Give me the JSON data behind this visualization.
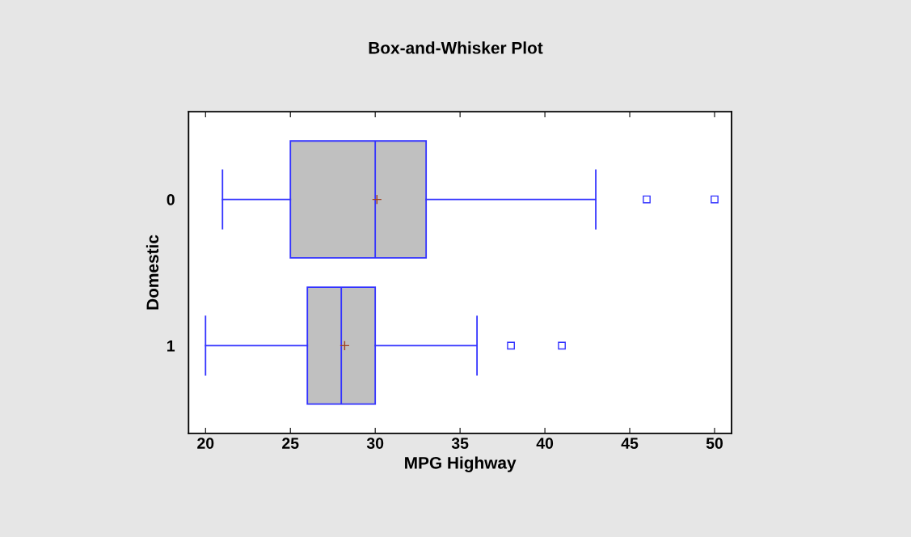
{
  "chart_data": {
    "type": "box",
    "title": "Box-and-Whisker Plot",
    "xlabel": "MPG Highway",
    "ylabel": "Domestic",
    "orientation": "horizontal",
    "categories": [
      "0",
      "1"
    ],
    "series": [
      {
        "color": "#3333ff",
        "boxes": [
          {
            "low": 21,
            "q1": 25,
            "median": 30,
            "q3": 33,
            "high": 43,
            "mean": 30.1,
            "outliers": [
              46,
              50
            ]
          },
          {
            "low": 20,
            "q1": 26,
            "median": 28,
            "q3": 30,
            "high": 36,
            "mean": 28.2,
            "outliers": [
              38,
              41
            ]
          }
        ]
      }
    ],
    "xlim": [
      19,
      51
    ],
    "xticks": [
      20,
      25,
      30,
      35,
      40,
      45,
      50
    ],
    "grid": false,
    "marker": "square"
  }
}
